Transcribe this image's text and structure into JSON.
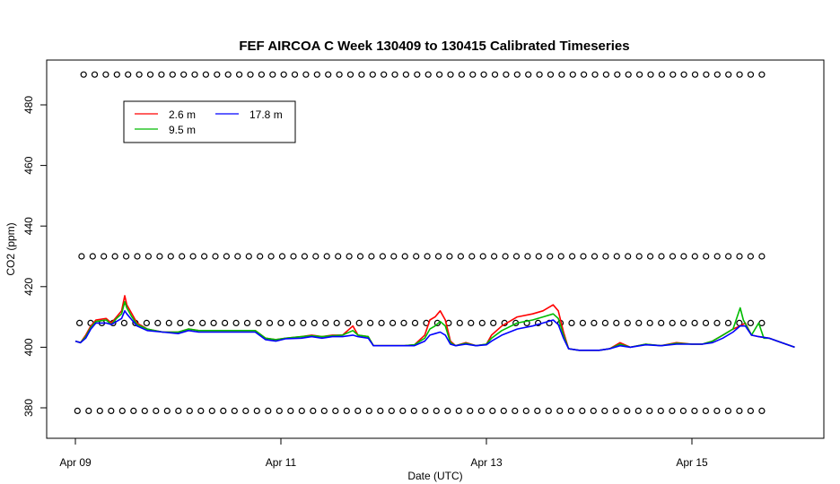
{
  "chart_data": {
    "type": "line",
    "title": "FEF AIRCOA C  Week 130409 to 130415  Calibrated Timeseries",
    "xlabel": "Date (UTC)",
    "ylabel": "CO2 (ppm)",
    "x_range_days": [
      0,
      7
    ],
    "x_ticks": [
      {
        "day": 0,
        "label": "Apr 09"
      },
      {
        "day": 2,
        "label": "Apr 11"
      },
      {
        "day": 4,
        "label": "Apr 13"
      },
      {
        "day": 6,
        "label": "Apr 15"
      }
    ],
    "ylim": [
      370,
      495
    ],
    "y_ticks": [
      380,
      400,
      420,
      440,
      460,
      480
    ],
    "grid": false,
    "legend_position": "top-left",
    "series": [
      {
        "name": "2.6 m",
        "color": "#ff0000",
        "points": [
          [
            0.0,
            402
          ],
          [
            0.05,
            401.5
          ],
          [
            0.1,
            404
          ],
          [
            0.15,
            407
          ],
          [
            0.2,
            409
          ],
          [
            0.3,
            409.5
          ],
          [
            0.35,
            408
          ],
          [
            0.4,
            410
          ],
          [
            0.45,
            412
          ],
          [
            0.48,
            417
          ],
          [
            0.5,
            414
          ],
          [
            0.55,
            411
          ],
          [
            0.6,
            408
          ],
          [
            0.7,
            406
          ],
          [
            0.85,
            405
          ],
          [
            1.0,
            405
          ],
          [
            1.1,
            406
          ],
          [
            1.2,
            405.5
          ],
          [
            1.4,
            405.5
          ],
          [
            1.6,
            405.5
          ],
          [
            1.75,
            405.5
          ],
          [
            1.85,
            403
          ],
          [
            1.95,
            402.5
          ],
          [
            2.05,
            403
          ],
          [
            2.2,
            403.5
          ],
          [
            2.3,
            404
          ],
          [
            2.4,
            403.5
          ],
          [
            2.5,
            404
          ],
          [
            2.6,
            404
          ],
          [
            2.7,
            407
          ],
          [
            2.75,
            404
          ],
          [
            2.85,
            403.5
          ],
          [
            2.9,
            400.5
          ],
          [
            3.0,
            400.5
          ],
          [
            3.2,
            400.5
          ],
          [
            3.3,
            400.8
          ],
          [
            3.4,
            404
          ],
          [
            3.45,
            409
          ],
          [
            3.5,
            410
          ],
          [
            3.55,
            412
          ],
          [
            3.6,
            409
          ],
          [
            3.65,
            402
          ],
          [
            3.7,
            400.5
          ],
          [
            3.8,
            401.5
          ],
          [
            3.9,
            400.5
          ],
          [
            4.0,
            401
          ],
          [
            4.05,
            404
          ],
          [
            4.15,
            407
          ],
          [
            4.3,
            410
          ],
          [
            4.45,
            411
          ],
          [
            4.55,
            412
          ],
          [
            4.65,
            414
          ],
          [
            4.7,
            412
          ],
          [
            4.75,
            405
          ],
          [
            4.8,
            399.5
          ],
          [
            4.9,
            399
          ],
          [
            5.0,
            399
          ],
          [
            5.1,
            399
          ],
          [
            5.2,
            399.5
          ],
          [
            5.3,
            401.5
          ],
          [
            5.4,
            400
          ],
          [
            5.55,
            401
          ],
          [
            5.7,
            400.5
          ],
          [
            5.85,
            401.5
          ],
          [
            6.0,
            401
          ],
          [
            6.1,
            401
          ],
          [
            6.2,
            402
          ],
          [
            6.3,
            404
          ],
          [
            6.4,
            406
          ],
          [
            6.47,
            407
          ],
          [
            6.52,
            408
          ],
          [
            6.58,
            404
          ],
          [
            6.65,
            403.5
          ],
          [
            6.75,
            403
          ],
          [
            7.0,
            400
          ]
        ]
      },
      {
        "name": "9.5 m",
        "color": "#00bb00",
        "points": [
          [
            0.0,
            402
          ],
          [
            0.05,
            401.5
          ],
          [
            0.1,
            403.5
          ],
          [
            0.15,
            406.5
          ],
          [
            0.2,
            408.5
          ],
          [
            0.3,
            409
          ],
          [
            0.35,
            407.5
          ],
          [
            0.4,
            409.5
          ],
          [
            0.45,
            411
          ],
          [
            0.48,
            415
          ],
          [
            0.5,
            413
          ],
          [
            0.55,
            410
          ],
          [
            0.6,
            407.5
          ],
          [
            0.7,
            406
          ],
          [
            0.85,
            405
          ],
          [
            1.0,
            405
          ],
          [
            1.1,
            406
          ],
          [
            1.2,
            405.5
          ],
          [
            1.4,
            405.5
          ],
          [
            1.6,
            405.5
          ],
          [
            1.75,
            405.5
          ],
          [
            1.85,
            403
          ],
          [
            1.95,
            402.5
          ],
          [
            2.05,
            403
          ],
          [
            2.2,
            403.5
          ],
          [
            2.3,
            403.8
          ],
          [
            2.4,
            403.5
          ],
          [
            2.5,
            403.8
          ],
          [
            2.6,
            404
          ],
          [
            2.7,
            405.5
          ],
          [
            2.75,
            404
          ],
          [
            2.85,
            403.5
          ],
          [
            2.9,
            400.5
          ],
          [
            3.0,
            400.5
          ],
          [
            3.2,
            400.5
          ],
          [
            3.3,
            400.8
          ],
          [
            3.4,
            403
          ],
          [
            3.45,
            406
          ],
          [
            3.5,
            407
          ],
          [
            3.55,
            408.5
          ],
          [
            3.6,
            407
          ],
          [
            3.65,
            401.5
          ],
          [
            3.7,
            400.5
          ],
          [
            3.8,
            401.3
          ],
          [
            3.9,
            400.5
          ],
          [
            4.0,
            401
          ],
          [
            4.05,
            403
          ],
          [
            4.15,
            405.5
          ],
          [
            4.3,
            408
          ],
          [
            4.45,
            409
          ],
          [
            4.55,
            410
          ],
          [
            4.65,
            411
          ],
          [
            4.7,
            409.5
          ],
          [
            4.75,
            404
          ],
          [
            4.8,
            399.5
          ],
          [
            4.9,
            399
          ],
          [
            5.0,
            399
          ],
          [
            5.1,
            399
          ],
          [
            5.2,
            399.5
          ],
          [
            5.3,
            401
          ],
          [
            5.4,
            400
          ],
          [
            5.55,
            401
          ],
          [
            5.7,
            400.5
          ],
          [
            5.85,
            401.3
          ],
          [
            6.0,
            401
          ],
          [
            6.1,
            401
          ],
          [
            6.2,
            402
          ],
          [
            6.3,
            404
          ],
          [
            6.4,
            406
          ],
          [
            6.47,
            413
          ],
          [
            6.5,
            409
          ],
          [
            6.58,
            404
          ],
          [
            6.65,
            408
          ],
          [
            6.7,
            403
          ],
          [
            6.75,
            403
          ],
          [
            7.0,
            400
          ]
        ]
      },
      {
        "name": "17.8 m",
        "color": "#0000ff",
        "points": [
          [
            0.0,
            402
          ],
          [
            0.05,
            401.5
          ],
          [
            0.1,
            403
          ],
          [
            0.15,
            406
          ],
          [
            0.2,
            408
          ],
          [
            0.3,
            408
          ],
          [
            0.35,
            407.5
          ],
          [
            0.4,
            408.5
          ],
          [
            0.45,
            409.5
          ],
          [
            0.48,
            412
          ],
          [
            0.5,
            411
          ],
          [
            0.55,
            409
          ],
          [
            0.6,
            407
          ],
          [
            0.7,
            405.5
          ],
          [
            0.85,
            405
          ],
          [
            1.0,
            404.5
          ],
          [
            1.1,
            405.5
          ],
          [
            1.2,
            405
          ],
          [
            1.4,
            405
          ],
          [
            1.6,
            405
          ],
          [
            1.75,
            405
          ],
          [
            1.85,
            402.5
          ],
          [
            1.95,
            402
          ],
          [
            2.05,
            402.8
          ],
          [
            2.2,
            403
          ],
          [
            2.3,
            403.5
          ],
          [
            2.4,
            403
          ],
          [
            2.5,
            403.5
          ],
          [
            2.6,
            403.5
          ],
          [
            2.7,
            404
          ],
          [
            2.75,
            403.5
          ],
          [
            2.85,
            403
          ],
          [
            2.9,
            400.5
          ],
          [
            3.0,
            400.5
          ],
          [
            3.2,
            400.5
          ],
          [
            3.3,
            400.5
          ],
          [
            3.4,
            402
          ],
          [
            3.45,
            404
          ],
          [
            3.5,
            404.5
          ],
          [
            3.55,
            405
          ],
          [
            3.6,
            404
          ],
          [
            3.65,
            401
          ],
          [
            3.7,
            400.5
          ],
          [
            3.8,
            401
          ],
          [
            3.9,
            400.5
          ],
          [
            4.0,
            400.8
          ],
          [
            4.05,
            402
          ],
          [
            4.15,
            404
          ],
          [
            4.3,
            406
          ],
          [
            4.45,
            407
          ],
          [
            4.55,
            408
          ],
          [
            4.65,
            409
          ],
          [
            4.7,
            407.5
          ],
          [
            4.75,
            403
          ],
          [
            4.8,
            399.5
          ],
          [
            4.9,
            399
          ],
          [
            5.0,
            399
          ],
          [
            5.1,
            399
          ],
          [
            5.2,
            399.5
          ],
          [
            5.3,
            400.5
          ],
          [
            5.4,
            400
          ],
          [
            5.55,
            400.8
          ],
          [
            5.7,
            400.5
          ],
          [
            5.85,
            401
          ],
          [
            6.0,
            401
          ],
          [
            6.1,
            401
          ],
          [
            6.2,
            401.5
          ],
          [
            6.3,
            403
          ],
          [
            6.4,
            405
          ],
          [
            6.47,
            407
          ],
          [
            6.52,
            407
          ],
          [
            6.58,
            404
          ],
          [
            6.65,
            403.5
          ],
          [
            6.75,
            403
          ],
          [
            7.0,
            400
          ]
        ]
      }
    ],
    "marker_rows": [
      {
        "y": 490,
        "x_start": 0.08,
        "x_end": 6.68,
        "count": 62
      },
      {
        "y": 430,
        "x_start": 0.06,
        "x_end": 6.68,
        "count": 62
      },
      {
        "y": 408,
        "x_start": 0.04,
        "x_end": 6.68,
        "count": 62
      },
      {
        "y": 379,
        "x_start": 0.02,
        "x_end": 6.68,
        "count": 62
      }
    ]
  }
}
